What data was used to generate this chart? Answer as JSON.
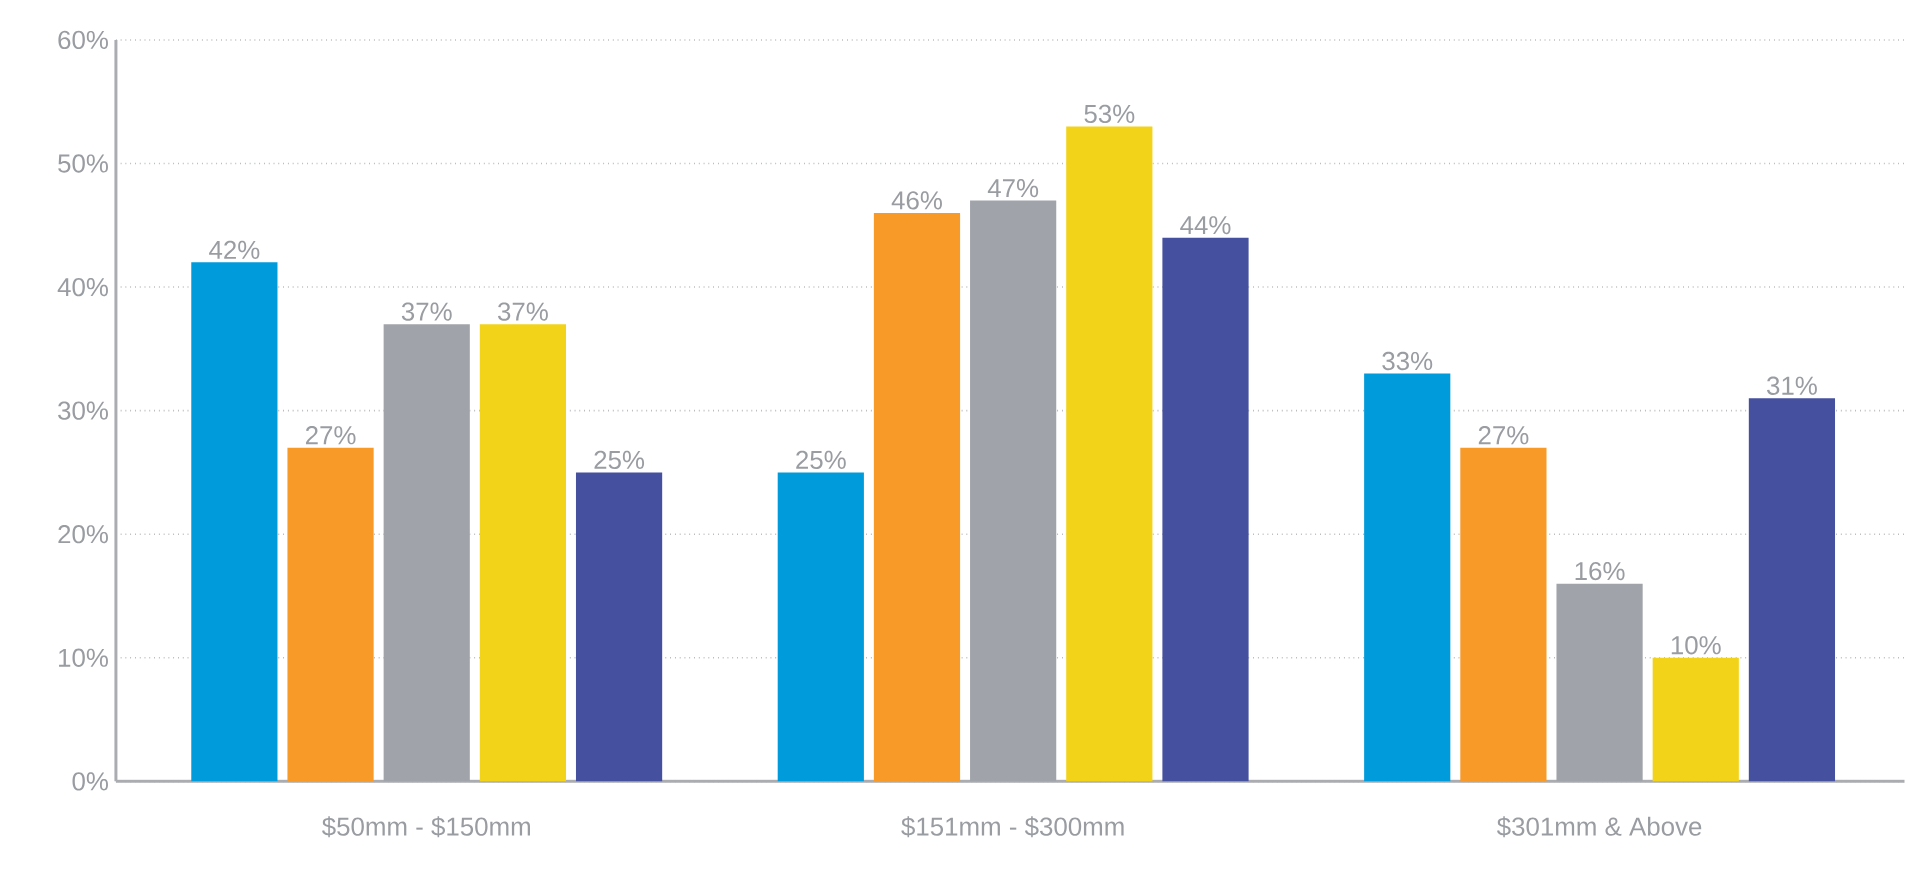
{
  "chart_data": {
    "type": "bar",
    "categories": [
      "$50mm - $150mm",
      "$151mm - $300mm",
      "$301mm & Above"
    ],
    "series": [
      {
        "color": "#009bdb",
        "values": [
          42,
          25,
          33
        ],
        "value_labels": [
          "42%",
          "25%",
          "33%"
        ]
      },
      {
        "color": "#f79a28",
        "values": [
          27,
          46,
          27
        ],
        "value_labels": [
          "27%",
          "46%",
          "27%"
        ]
      },
      {
        "color": "#a0a3a9",
        "values": [
          37,
          47,
          16
        ],
        "value_labels": [
          "37%",
          "47%",
          "16%"
        ]
      },
      {
        "color": "#f3d319",
        "values": [
          37,
          53,
          10
        ],
        "value_labels": [
          "37%",
          "53%",
          "10%"
        ]
      },
      {
        "color": "#45509f",
        "values": [
          25,
          44,
          31
        ],
        "value_labels": [
          "25%",
          "44%",
          "31%"
        ]
      }
    ],
    "ylim": [
      0,
      60
    ],
    "yticks": [
      {
        "value": 0,
        "label": "0%"
      },
      {
        "value": 10,
        "label": "10%"
      },
      {
        "value": 20,
        "label": "20%"
      },
      {
        "value": 30,
        "label": "30%"
      },
      {
        "value": 40,
        "label": "40%"
      },
      {
        "value": 50,
        "label": "50%"
      },
      {
        "value": 60,
        "label": "60%"
      }
    ],
    "grid": "y"
  }
}
